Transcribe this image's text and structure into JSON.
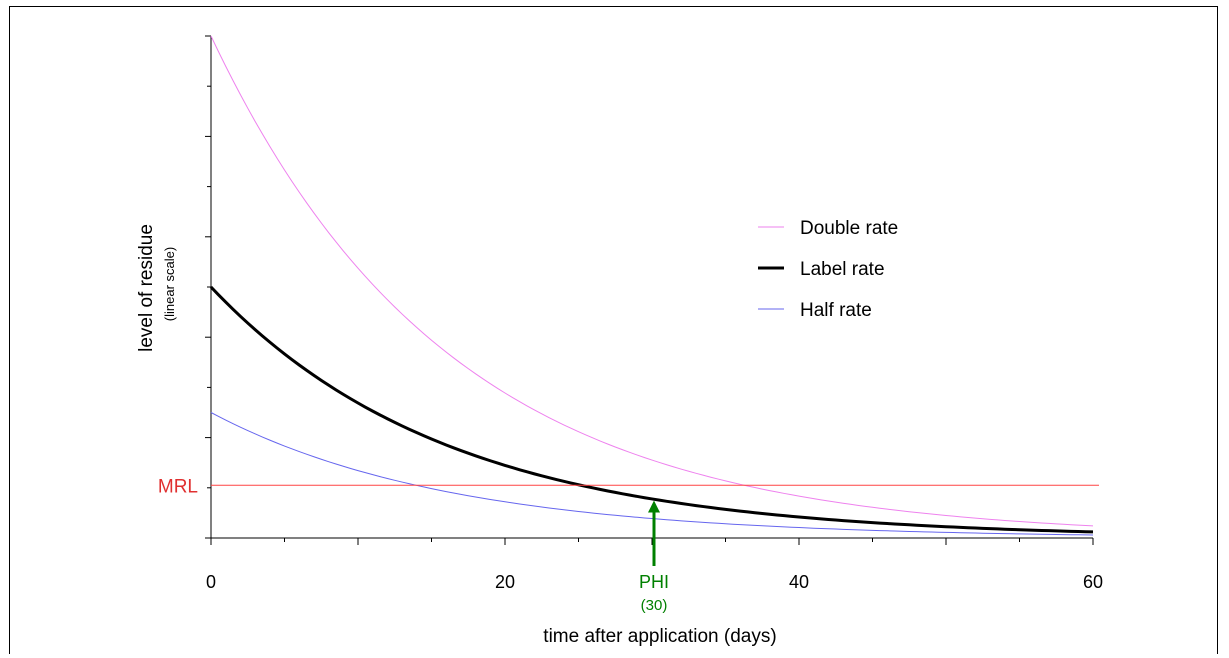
{
  "chart_data": {
    "type": "line",
    "xlabel": "time after application (days)",
    "ylabel": "level of residue",
    "ylabel_sub": "(linear scale)",
    "xlim": [
      0,
      60
    ],
    "ylim": [
      0,
      100
    ],
    "xticks": [
      0,
      20,
      40,
      60
    ],
    "xtick_labels": [
      "0",
      "20",
      "40",
      "60"
    ],
    "y_scale": "linear",
    "y_tick_labels_shown": false,
    "legend_position": "upper-right",
    "series": [
      {
        "name": "Double rate",
        "color": "#ee82ee",
        "line_weight": "thin",
        "x": [
          0,
          5,
          10,
          15,
          20,
          25,
          30,
          35,
          40,
          45,
          50,
          55,
          60
        ],
        "y": [
          100,
          73.3,
          53.8,
          39.4,
          28.9,
          21.2,
          15.5,
          11.4,
          8.35,
          6.12,
          4.49,
          3.29,
          2.41
        ]
      },
      {
        "name": "Label rate",
        "color": "#000000",
        "line_weight": "thick",
        "x": [
          0,
          5,
          10,
          15,
          20,
          25,
          30,
          35,
          40,
          45,
          50,
          55,
          60
        ],
        "y": [
          50,
          36.7,
          26.9,
          19.7,
          14.4,
          10.6,
          7.76,
          5.69,
          4.17,
          3.06,
          2.24,
          1.65,
          1.21
        ]
      },
      {
        "name": "Half rate",
        "color": "#6666ee",
        "line_weight": "thin",
        "x": [
          0,
          5,
          10,
          15,
          20,
          25,
          30,
          35,
          40,
          45,
          50,
          55,
          60
        ],
        "y": [
          25,
          18.3,
          13.4,
          9.85,
          7.22,
          5.3,
          3.88,
          2.85,
          2.09,
          1.53,
          1.12,
          0.82,
          0.6
        ]
      }
    ],
    "reference_line": {
      "label": "MRL",
      "y": 10.5,
      "color": "#ff4444"
    },
    "annotation": {
      "label": "PHI",
      "sublabel": "(30)",
      "x": 30,
      "color": "#008000"
    }
  }
}
